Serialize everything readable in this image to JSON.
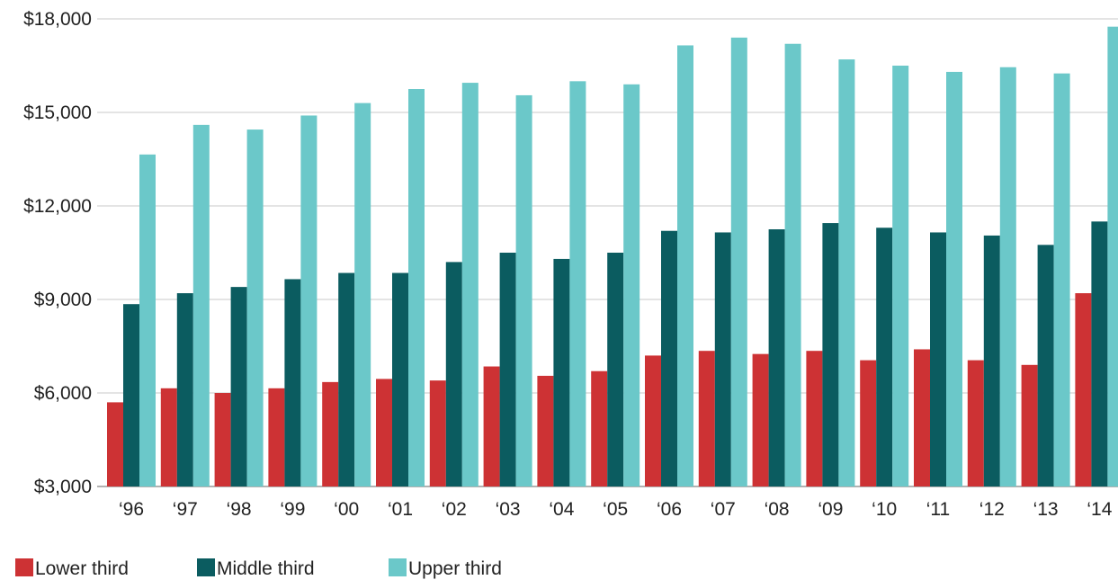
{
  "chart_data": {
    "type": "bar",
    "title": "",
    "xlabel": "",
    "ylabel": "",
    "ylim": [
      3000,
      18000
    ],
    "yticks": [
      3000,
      6000,
      9000,
      12000,
      15000,
      18000
    ],
    "ytick_labels": [
      "$3,000",
      "$6,000",
      "$9,000",
      "$12,000",
      "$15,000",
      "$18,000"
    ],
    "grid": "horizontal",
    "legend_position": "bottom-left",
    "categories": [
      "‘96",
      "‘97",
      "‘98",
      "‘99",
      "‘00",
      "‘01",
      "‘02",
      "‘03",
      "‘04",
      "‘05",
      "‘06",
      "‘07",
      "‘08",
      "‘09",
      "‘10",
      "‘11",
      "‘12",
      "‘13",
      "‘14"
    ],
    "series": [
      {
        "name": "Lower third",
        "color": "#cd3234",
        "values": [
          5700,
          6150,
          6000,
          6150,
          6350,
          6450,
          6400,
          6850,
          6550,
          6700,
          7200,
          7350,
          7250,
          7350,
          7050,
          7400,
          7050,
          6900,
          9200
        ]
      },
      {
        "name": "Middle third",
        "color": "#0b5c60",
        "values": [
          8850,
          9200,
          9400,
          9650,
          9850,
          9850,
          10200,
          10500,
          10300,
          10500,
          11200,
          11150,
          11250,
          11450,
          11300,
          11150,
          11050,
          10750,
          11500
        ]
      },
      {
        "name": "Upper third",
        "color": "#6bc8c9",
        "values": [
          13650,
          14600,
          14450,
          14900,
          15300,
          15750,
          15950,
          15550,
          16000,
          15900,
          17150,
          17400,
          17200,
          16700,
          16500,
          16300,
          16450,
          16250,
          17750
        ]
      }
    ]
  },
  "colors": {
    "grid": "#c8c8c8",
    "axis": "#999999",
    "text": "#222222"
  }
}
